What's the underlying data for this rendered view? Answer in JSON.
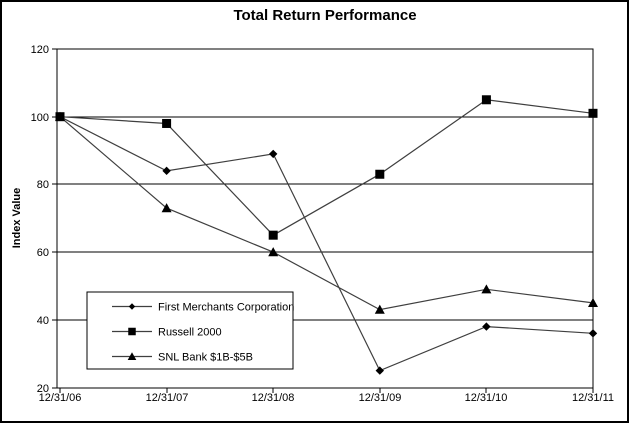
{
  "window": {
    "background": "#ffffff",
    "frame_border": "#000000"
  },
  "chart_data": {
    "type": "line",
    "title": "Total Return Performance",
    "xlabel": "",
    "ylabel": "Index Value",
    "categories": [
      "12/31/06",
      "12/31/07",
      "12/31/08",
      "12/31/09",
      "12/31/10",
      "12/31/11"
    ],
    "series": [
      {
        "name": "First Merchants Corporation",
        "marker": "diamond",
        "values": [
          100,
          84,
          89,
          25,
          38,
          36
        ]
      },
      {
        "name": "Russell 2000",
        "marker": "square",
        "values": [
          100,
          98,
          65,
          83,
          105,
          101
        ]
      },
      {
        "name": "SNL Bank $1B-$5B",
        "marker": "triangle",
        "values": [
          100,
          73,
          60,
          43,
          49,
          45
        ]
      }
    ],
    "ylim": [
      20,
      120
    ],
    "yticks": [
      20,
      40,
      60,
      80,
      100,
      120
    ],
    "grid": "horizontal",
    "legend_position": "inside-lower-left",
    "colors": {
      "line": "#3f3f3f",
      "marker": "#000000",
      "grid": "#000000",
      "axis": "#000000",
      "text": "#000000",
      "legend_background": "#ffffff",
      "legend_border": "#000000"
    }
  }
}
